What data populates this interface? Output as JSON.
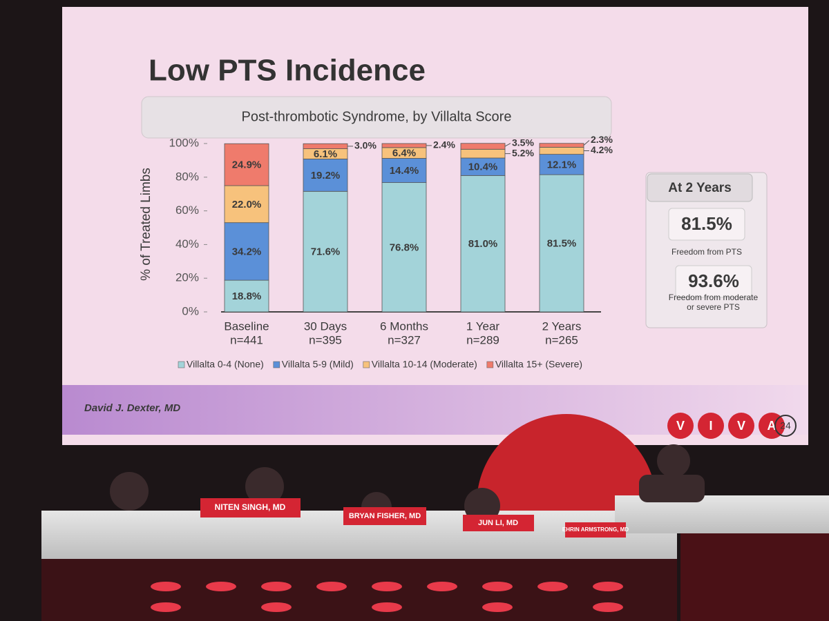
{
  "chart_data": {
    "type": "stacked_bar",
    "title": "Low PTS Incidence",
    "subtitle": "Post-thrombotic Syndrome, by Villalta Score",
    "y_label": "% of Treated Limbs",
    "categories": [
      "Baseline",
      "30 Days",
      "6 Months",
      "1 Year",
      "2 Years"
    ],
    "sample_sizes": [
      "n=441",
      "n=395",
      "n=327",
      "n=289",
      "n=265"
    ],
    "series": [
      {
        "name": "Villalta 0-4 (None)",
        "color": "#a3d3d9",
        "values": [
          18.8,
          71.6,
          76.8,
          81.0,
          81.5
        ],
        "value_labels": [
          "18.8%",
          "71.6%",
          "76.8%",
          "81.0%",
          "81.5%"
        ]
      },
      {
        "name": "Villalta 5-9 (Mild)",
        "color": "#5b90d8",
        "values": [
          34.2,
          19.2,
          14.4,
          10.4,
          12.1
        ],
        "value_labels": [
          "34.2%",
          "19.2%",
          "14.4%",
          "10.4%",
          "12.1%"
        ]
      },
      {
        "name": "Villalta 10-14 (Moderate)",
        "color": "#f7c27c",
        "values": [
          22.0,
          6.1,
          6.4,
          5.2,
          4.2
        ],
        "value_labels": [
          "22.0%",
          "6.1%",
          "6.4%",
          "5.2%",
          "4.2%"
        ]
      },
      {
        "name": "Villalta 15+ (Severe)",
        "color": "#ef7b6c",
        "values": [
          24.9,
          3.0,
          2.4,
          3.5,
          2.3
        ],
        "value_labels": [
          "24.9%",
          "3.0%",
          "2.4%",
          "3.5%",
          "2.3%"
        ]
      }
    ],
    "ylim": [
      0,
      100
    ],
    "yticks": [
      {
        "value": 0,
        "label": "0%"
      },
      {
        "value": 20,
        "label": "20%"
      },
      {
        "value": 40,
        "label": "40%"
      },
      {
        "value": 60,
        "label": "60%"
      },
      {
        "value": 80,
        "label": "80%"
      },
      {
        "value": 100,
        "label": "100%"
      }
    ],
    "legend": "bottom"
  },
  "side_panel": {
    "heading": "At 2 Years",
    "stat1": "81.5%",
    "caption1": "Freedom from PTS",
    "stat2": "93.6%",
    "caption2": "Freedom from moderate or severe PTS"
  },
  "footer": {
    "author": "David J. Dexter, MD",
    "logo_letters": [
      "V",
      "I",
      "V",
      "A"
    ],
    "logo_year": "24"
  },
  "stage": {
    "nameplates": [
      "NITEN SINGH, MD",
      "BRYAN FISHER, MD",
      "JUN LI, MD",
      "EHRIN ARMSTRONG, MD"
    ]
  }
}
